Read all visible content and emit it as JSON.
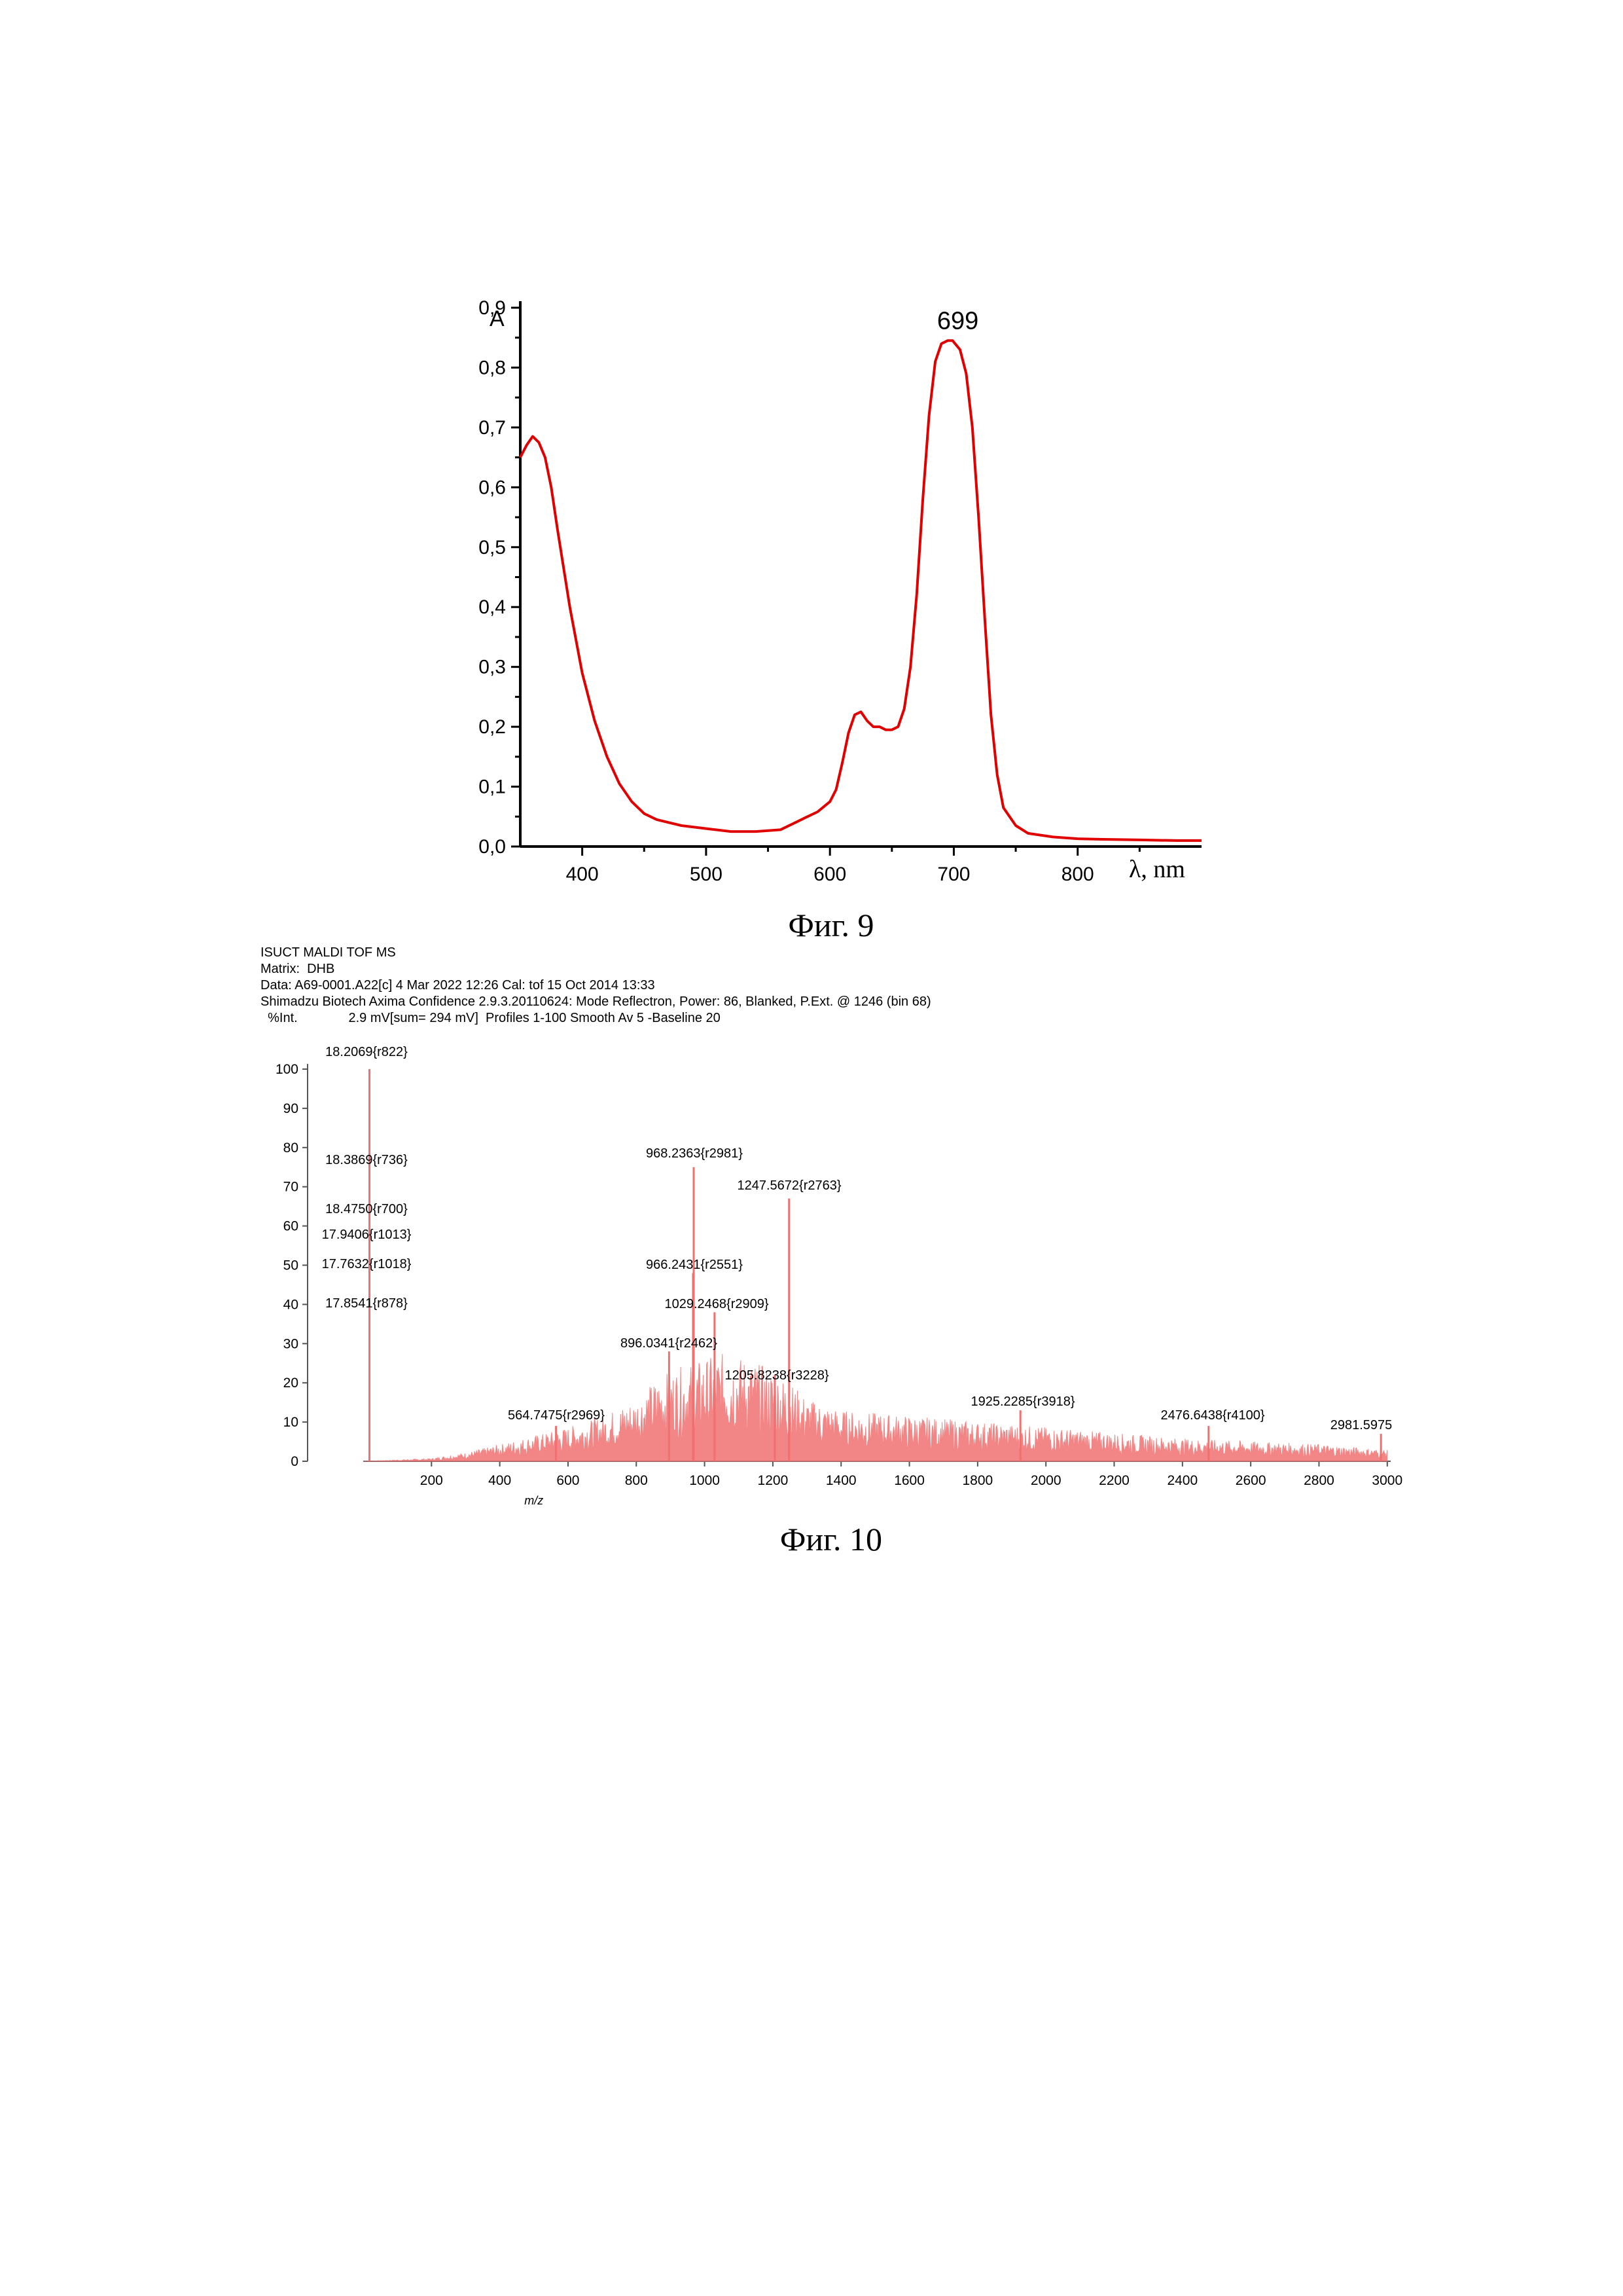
{
  "figure9": {
    "caption": "Фиг. 9",
    "chart_data": {
      "type": "line",
      "ylabel": "A",
      "xlabel": "λ, nm",
      "xlim": [
        350,
        900
      ],
      "ylim": [
        0,
        0.9
      ],
      "x_ticks": [
        400,
        500,
        600,
        700,
        800
      ],
      "y_ticks": [
        "0,0",
        "0,1",
        "0,2",
        "0,3",
        "0,4",
        "0,5",
        "0,6",
        "0,7",
        "0,8",
        "0,9"
      ],
      "y_tick_values": [
        0,
        0.1,
        0.2,
        0.3,
        0.4,
        0.5,
        0.6,
        0.7,
        0.8,
        0.9
      ],
      "color": "#e00000",
      "peak_label": "699",
      "peak_label_x": 699,
      "peak_label_y": 0.86,
      "series": [
        {
          "x": [
            350,
            355,
            360,
            365,
            370,
            375,
            380,
            390,
            400,
            410,
            420,
            430,
            440,
            450,
            460,
            480,
            500,
            520,
            540,
            560,
            570,
            580,
            590,
            600,
            605,
            610,
            615,
            620,
            625,
            630,
            635,
            640,
            645,
            650,
            655,
            660,
            665,
            670,
            675,
            680,
            685,
            690,
            695,
            699,
            705,
            710,
            715,
            720,
            725,
            730,
            735,
            740,
            750,
            760,
            780,
            800,
            820,
            850,
            880,
            900
          ],
          "y": [
            0.65,
            0.67,
            0.685,
            0.675,
            0.65,
            0.6,
            0.53,
            0.4,
            0.29,
            0.21,
            0.15,
            0.105,
            0.075,
            0.055,
            0.045,
            0.035,
            0.03,
            0.025,
            0.025,
            0.028,
            0.038,
            0.048,
            0.058,
            0.075,
            0.095,
            0.14,
            0.19,
            0.22,
            0.225,
            0.21,
            0.2,
            0.2,
            0.195,
            0.195,
            0.2,
            0.23,
            0.3,
            0.42,
            0.58,
            0.72,
            0.81,
            0.84,
            0.845,
            0.845,
            0.83,
            0.79,
            0.7,
            0.55,
            0.38,
            0.22,
            0.12,
            0.065,
            0.035,
            0.022,
            0.016,
            0.013,
            0.012,
            0.011,
            0.01,
            0.01
          ]
        }
      ]
    }
  },
  "figure10": {
    "caption": "Фиг. 10",
    "header": {
      "line1": "ISUCT MALDI TOF MS",
      "line2": "Matrix:  DHB",
      "line3": "Data: A69-0001.A22[c] 4 Mar 2022 12:26 Cal: tof 15 Oct 2014 13:33",
      "line4": "Shimadzu Biotech Axima Confidence 2.9.3.20110624: Mode Reflectron, Power: 86, Blanked, P.Ext. @ 1246 (bin 68)",
      "line5": "  %Int.              2.9 mV[sum= 294 mV]  Profiles 1-100 Smooth Av 5 -Baseline 20"
    },
    "chart_data": {
      "type": "bar",
      "xlabel": "m/z",
      "xlim": [
        0,
        3010
      ],
      "ylim": [
        0,
        100
      ],
      "x_ticks": [
        200,
        400,
        600,
        800,
        1000,
        1200,
        1400,
        1600,
        1800,
        2000,
        2200,
        2400,
        2600,
        2800,
        3000
      ],
      "y_ticks": [
        0,
        10,
        20,
        30,
        40,
        50,
        60,
        70,
        80,
        90,
        100
      ],
      "color": "#f07070",
      "envelope": {
        "x": [
          0,
          200,
          300,
          400,
          500,
          600,
          700,
          800,
          850,
          900,
          950,
          1000,
          1050,
          1100,
          1150,
          1200,
          1250,
          1300,
          1400,
          1600,
          1800,
          2000,
          2200,
          2400,
          2600,
          2800,
          3000
        ],
        "y": [
          0,
          0.5,
          1.5,
          3,
          4.5,
          6,
          8,
          11,
          14,
          16,
          17,
          18,
          19,
          18.5,
          17.5,
          16,
          14,
          11,
          9,
          8,
          7,
          6,
          5,
          4,
          3.5,
          3,
          2
        ]
      },
      "peaks": [
        {
          "label": "18.2069{r822}",
          "mz": 18.21,
          "intensity": 100
        },
        {
          "label": "18.3869{r736}",
          "mz": 18.39,
          "intensity": 72
        },
        {
          "label": "18.4750{r700}",
          "mz": 18.48,
          "intensity": 62
        },
        {
          "label": "17.9406{r1013}",
          "mz": 17.94,
          "intensity": 56
        },
        {
          "label": "17.7632{r1018}",
          "mz": 17.76,
          "intensity": 48
        },
        {
          "label": "17.8541{r878}",
          "mz": 17.85,
          "intensity": 38
        },
        {
          "label": "968.2363{r2981}",
          "mz": 968.24,
          "intensity": 75
        },
        {
          "label": "1247.5672{r2763}",
          "mz": 1247.57,
          "intensity": 67
        },
        {
          "label": "966.2431{r2551}",
          "mz": 966.24,
          "intensity": 48
        },
        {
          "label": "1029.2468{r2909}",
          "mz": 1029.25,
          "intensity": 38
        },
        {
          "label": "896.0341{r2462}",
          "mz": 896.03,
          "intensity": 28
        },
        {
          "label": "1205.8238{r3228}",
          "mz": 1205.82,
          "intensity": 22
        },
        {
          "label": "564.7475{r2969}",
          "mz": 564.75,
          "intensity": 9
        },
        {
          "label": "1925.2285{r3918}",
          "mz": 1925.23,
          "intensity": 13
        },
        {
          "label": "2476.6438{r4100}",
          "mz": 2476.64,
          "intensity": 9
        },
        {
          "label": "2981.5975",
          "mz": 2981.6,
          "intensity": 7
        }
      ]
    }
  }
}
